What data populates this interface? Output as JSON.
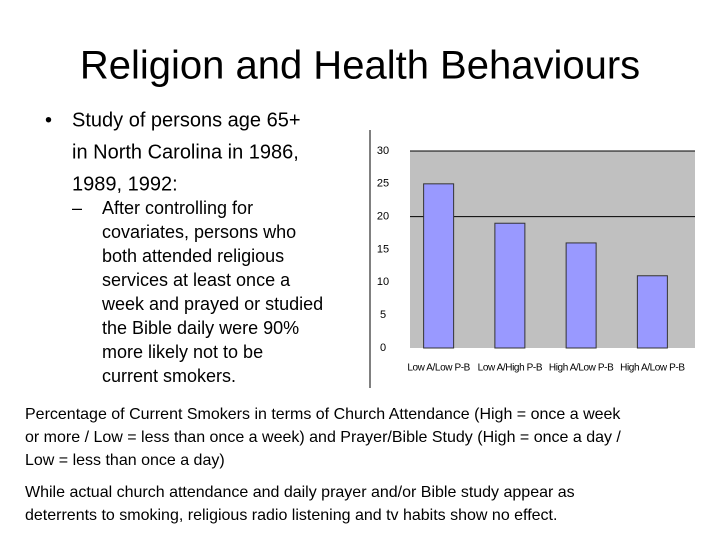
{
  "title": "Religion and Health Behaviours",
  "bullet": {
    "lines": [
      "Study of persons age 65+",
      "in North Carolina in 1986,",
      "1989, 1992:"
    ],
    "sub_bullet": {
      "lines": [
        "After controlling for",
        "covariates, persons who",
        "both attended religious",
        "services at least once a",
        "week and prayed or studied",
        "the Bible daily were 90%",
        "more likely not to be",
        "current smokers."
      ]
    }
  },
  "chart_data": {
    "type": "bar",
    "categories": [
      "Low A/Low P-B",
      "Low A/High P-B",
      "High A/Low P-B",
      "High A/Low P-B"
    ],
    "values": [
      25,
      19,
      16,
      11
    ],
    "color": "#9999ff",
    "background": "#c0c0c0",
    "ylim": [
      0,
      30
    ],
    "yticks": [
      0,
      5,
      10,
      15,
      20,
      25,
      30
    ],
    "grid_lines": [
      20,
      30
    ]
  },
  "caption": {
    "lines": [
      "Percentage of Current Smokers in terms of Church Attendance (High = once a week",
      "or more / Low = less than once a week) and Prayer/Bible Study (High = once a day /",
      "Low = less than once a day)"
    ]
  },
  "note": {
    "lines": [
      "While actual church attendance and daily prayer and/or Bible study appear as",
      "deterrents to smoking, religious radio listening and tv habits show no effect."
    ]
  }
}
